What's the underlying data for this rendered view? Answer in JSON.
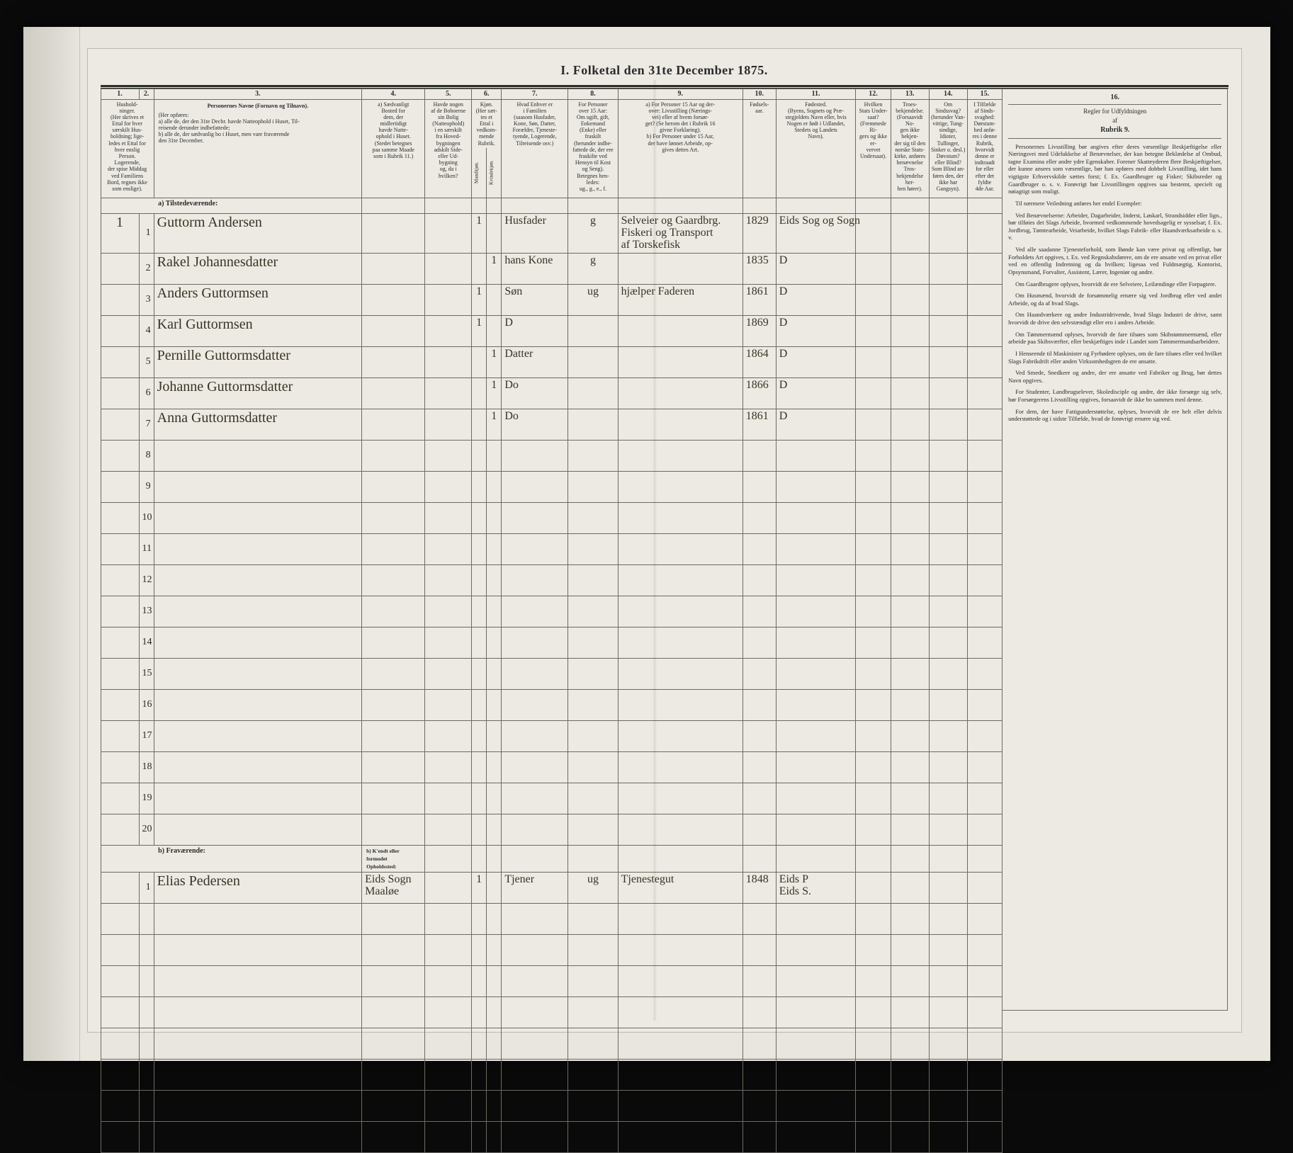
{
  "title": "I.  Folketal den 31te December 1875.",
  "columns": {
    "nums": [
      "1.",
      "2.",
      "3.",
      "4.",
      "5.",
      "6.",
      "7.",
      "8.",
      "9.",
      "10.",
      "11.",
      "12.",
      "13.",
      "14.",
      "15.",
      "16."
    ],
    "h1": "Hushold-\nninger.\n(Her skrives et\nEttal for hver\nsærskilt Hus-\nholdning; lige-\nledes et Ettal for\nhver enslig\nPerson.\nLogerende,\nder spise Middag\nved Familiens\nBord, regnes ikke\nsom enslige).",
    "h3_title": "Personernes Navne (Fornavn og Tilnavn).",
    "h3_sub": "(Her opføres:\na) alle de, der den 31te Decbr. havde Natteophold i Huset, Til-\nreisende derunder indbefattede;\nb) alle de, der sædvanlig bo i Huset, men vare fraværende\nden 31te December.",
    "h4": "a) Sædvanligt\nBosted for\ndem, der\nmidlertidigt\nhavde Natte-\nophold i Huset.\n(Stedet betegnes\npaa samme Maade\nsom i Rubrik 11.)",
    "h5": "Havde nogen\naf de Boboerne\nsin Bolig\n(Natteophold)\ni en særskilt\nfra Hoved-\nbygningen\nadskilt Side-\neller Ud-\nbygning\nog, da i\nhvilken?",
    "h6": "Kjøn.\n(Her sæt-\ntes et\nEttal i\nvedkom-\nmende\nRubrik.",
    "h6a": "Mandkjøn.",
    "h6b": "Kvindekjøn.",
    "h7": "Hvad Enhver er\ni Familien\n(saasom Husfader,\nKone, Søn, Datter,\nForældre, Tjeneste-\ntyende, Logerende,\nTilreisende osv.)",
    "h8": "For Personer\nover 15 Aar:\nOm ugift, gift,\nEnkemand\n(Enke) eller\nfraskilt\n(herunder indbe-\nfattede de, der ere\nfraskilte ved\nHensyn til Kost\nog Seng).\nBetegnes hen-\nledes:\nug., g., e., f.",
    "h9": "a) For Personer 15 Aar og der-\nover: Livsstilling (Nærings-\nvei) eller af hvem forsør-\nget? (Se herom det i Rubrik 16\ngivne Forklaring).\nb) For Personer under 15 Aar,\nder have lønnet Arbeide, op-\ngives dettes Art.",
    "h10": "Fødsels-\naar.",
    "h11": "Fødested.\n(Byens, Sognets og Præ-\nstegjeldets Navn eller, hvis\nNogen er født i Udlandet,\nStedets og Landets\nNavn).",
    "h12": "Hvilken\nStats Under-\nsaat?\n(Fremmede Ri-\ngers og ikke er-\nvervet\nUndersaat).",
    "h13": "Troes-\nbekjendelse.\n(Forsaavidt No-\ngen ikke bekjen-\nder sig til den\nnorske Stats-\nkirke, anføres\nbenævnelse Tros-\nbekjendelse her-\nhen hører).",
    "h14": "Om\nSindssvag?\n(herunder Van-\nvittige, Tung-\nsindige, Idioter,\nTullinger,\nSinker o. desl.)\nDøvstum?\neller Blind?\nSom Blind an-\nføres den, der\nikke har\nGangsyn).",
    "h15": "I Tilfælde\naf Sinds-\nsvaghed:\nDørstum-\nhed anfø-\nres i denne\nRubrik,\nhvorvidt\ndenne er\nindtraadt\nfor eller\nefter det\nfyldte\n4de Aar."
  },
  "section_a": "a) Tilstedeværende:",
  "section_b": "b) Fraværende:",
  "section_b_sub": "b) K'endt eller\nformodet\nOpholdssted:",
  "rows_a": [
    {
      "hh": "1",
      "n": "1",
      "name": "Guttorm Andersen",
      "m": "1",
      "f": "",
      "fam": "Husfader",
      "civ": "g",
      "occ": "Selveier og Gaardbrg.\nFiskeri og Transport\naf Torskefisk",
      "yr": "1829",
      "place": "Eids Sog og Sogn"
    },
    {
      "hh": "",
      "n": "2",
      "name": "Rakel Johannesdatter",
      "m": "",
      "f": "1",
      "fam": "hans Kone",
      "civ": "g",
      "occ": "",
      "yr": "1835",
      "place": "D"
    },
    {
      "hh": "",
      "n": "3",
      "name": "Anders Guttormsen",
      "m": "1",
      "f": "",
      "fam": "Søn",
      "civ": "ug",
      "occ": "hjælper Faderen",
      "yr": "1861",
      "place": "D"
    },
    {
      "hh": "",
      "n": "4",
      "name": "Karl Guttormsen",
      "m": "1",
      "f": "",
      "fam": "D",
      "civ": "",
      "occ": "",
      "yr": "1869",
      "place": "D"
    },
    {
      "hh": "",
      "n": "5",
      "name": "Pernille Guttormsdatter",
      "m": "",
      "f": "1",
      "fam": "Datter",
      "civ": "",
      "occ": "",
      "yr": "1864",
      "place": "D"
    },
    {
      "hh": "",
      "n": "6",
      "name": "Johanne Guttormsdatter",
      "m": "",
      "f": "1",
      "fam": "Do",
      "civ": "",
      "occ": "",
      "yr": "1866",
      "place": "D"
    },
    {
      "hh": "",
      "n": "7",
      "name": "Anna Guttormsdatter",
      "m": "",
      "f": "1",
      "fam": "Do",
      "civ": "",
      "occ": "",
      "yr": "1861",
      "place": "D"
    }
  ],
  "blank_rows": [
    "8",
    "9",
    "10",
    "11",
    "12",
    "13",
    "14",
    "15",
    "16",
    "17",
    "18",
    "19",
    "20"
  ],
  "rows_b": [
    {
      "hh": "",
      "n": "1",
      "name": "Elias Pedersen",
      "bosted": "Eids Sogn\nMaaløe",
      "m": "1",
      "f": "",
      "fam": "Tjener",
      "civ": "ug",
      "occ": "Tjenestegut",
      "yr": "1848",
      "place": "Eids P\nEids S."
    }
  ],
  "blank_rows_b": 8,
  "side": {
    "colnum": "16.",
    "head1": "Regler for Udfyldningen",
    "head2": "af",
    "head3": "Rubrik 9.",
    "p": [
      "Personernes Livsstilling bør angives efter deres væsentlige Beskjæftigelse eller Næringsvei med Udelukkelse af Benævnelser, der kun betegne Beklædelse af Ombud, tagne Examina eller andre ydre Egenskaber. Forener Skatteyderen flere Beskjæftigelser, der kunne ansees som væsentlige, bør han opføres med dobbelt Livsstilling, idet hans vigtigste Erhvervskilde sættes forst; f. Ex. Gaardbruger og Fisker; Skibsreder og Gaardbruger o. s. v. Forøvrigt bør Livsstillingen opgives saa bestemt, specielt og nøiagtigt som muligt.",
      "Til nærmere Veiledning anføres her endel Exempler:",
      "Ved Benævnelserne: Arbeider, Dagarbeider, Inderst, Løskarl, Strandsidder eller lign., bør tilføies det Slags Arbeide, hvormed vedkommende hovedsagelig er sysselsat; f. Ex. Jordbrug, Tømtearbeide, Veiarbeide, hvilket Slags Fabrik- eller Haandværksarbeide o. s. v.",
      "Ved alle saadanne Tjenesteforhold, som Bønde kan være privat og offentligt, bør Forholdets Art opgives, t. Ex. ved Regnskabsførere, om de ere ansatte ved en privat eller ved en offentlig Indretning og da hvilken; ligesaa ved Fuldmægtig, Kontorist, Opsynsmand, Forvalter, Assistent, Lærer, Ingeniør og andre.",
      "Om Gaardbrugere oplyses, hvorvidt de ere Selveiere, Leilændinge eller Forpagtere.",
      "Om Husmænd, hvorvidt de forsømmelig ernære sig ved Jordbrug eller ved andet Arbeide, og da af hvad Slags.",
      "Om Haandværkere og andre Industridrivende, hvad Slags Industri de drive, samt hvorvidt de drive den selvstændigt eller ero i andres Arbeide.",
      "Om Tømmermænd oplyses, hvorvidt de fare tilsøes som Skibstømmermænd, eller arbeide paa Skibsværfter, eller beskjæftiges inde i Landet som Tømmermandsarbeidere.",
      "I Henseende til Maskinister og Fyrbødere oplyses, om de fare tilsøes eller ved hvilket Slags Fabrikdrift eller anden Virksomhedsgren de ere ansatte.",
      "Ved Smede, Snedkere og andre, der ere ansatte ved Fabriker og Brug, bør dettes Navn opgives.",
      "For Studenter, Landbrugselever, Skoledisciple og andre, der ikke forsørge sig selv, bør Forsørgerens Livsstilling opgives, forsaavidt de ikke bo sammen med denne.",
      "For dem, der have Fattigunderstøttelse, oplyses, hvorvidt de ere helt eller delvis understøttede og i sidste Tilfælde, hvad de forøvrigt ernære sig ved."
    ]
  },
  "colors": {
    "paper": "#eceae3",
    "ink": "#2b2b2b",
    "rule": "#6d6a62",
    "handwriting": "#3a3325",
    "frame": "#0a0a0a"
  }
}
